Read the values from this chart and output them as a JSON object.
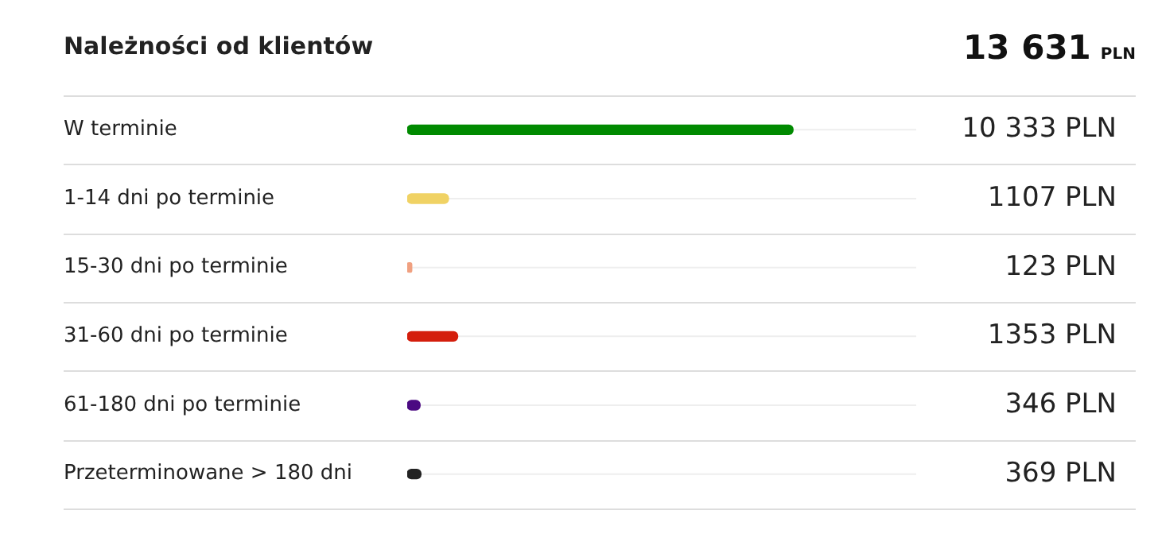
{
  "chart_data": {
    "type": "bar",
    "orientation": "horizontal",
    "title": "Należności od klientów",
    "annotations": [
      "13 631 PLN"
    ],
    "categories": [
      "W terminie",
      "1-14 dni po terminie",
      "15-30 dni po terminie",
      "31-60 dni po terminie",
      "61-180 dni po terminie",
      "Przeterminowane > 180 dni"
    ],
    "values": [
      10333,
      1107,
      123,
      1353,
      346,
      369
    ],
    "colors": [
      "#008a00",
      "#f0d264",
      "#f0a080",
      "#d41e0c",
      "#4b0a82",
      "#222222"
    ],
    "value_labels": [
      "10 333 PLN",
      "1107 PLN",
      "123 PLN",
      "1353 PLN",
      "346 PLN",
      "369 PLN"
    ],
    "xlim": [
      0,
      13631
    ],
    "tick_labels": "y",
    "grid": "y",
    "legend": false
  }
}
